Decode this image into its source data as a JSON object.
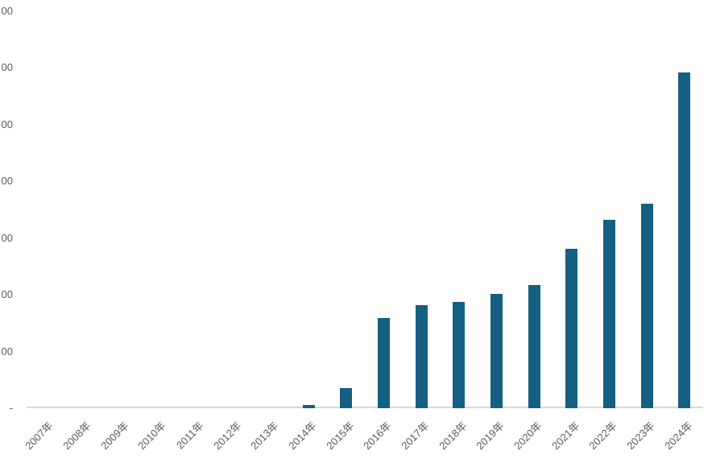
{
  "chart_data": {
    "type": "bar",
    "title": "",
    "xlabel": "",
    "ylabel": "",
    "categories": [
      "2007年",
      "2008年",
      "2009年",
      "2010年",
      "2011年",
      "2012年",
      "2013年",
      "2014年",
      "2015年",
      "2016年",
      "2017年",
      "2018年",
      "2019年",
      "2020年",
      "2021年",
      "2022年",
      "2023年",
      "2024年"
    ],
    "values": [
      0,
      0,
      0,
      0,
      0,
      0,
      0,
      30,
      175,
      795,
      910,
      935,
      1005,
      1085,
      1405,
      1660,
      1800,
      2960
    ],
    "values_estimated_from_gridlines": true,
    "y_axis": {
      "min": 0,
      "max": 3500,
      "tick_interval": 500,
      "tick_labels_top_to_bottom": [
        "00",
        "00",
        "00",
        "00",
        "00",
        "00",
        "00",
        "-"
      ],
      "labels_clipped_at_left_edge": true
    },
    "x_axis": {
      "label_rotation_deg": -45
    },
    "gridlines": false,
    "legend": "none",
    "colors": {
      "bar": "#156082",
      "axis_line": "#D9D9D9",
      "tick_text": "#595959"
    }
  }
}
